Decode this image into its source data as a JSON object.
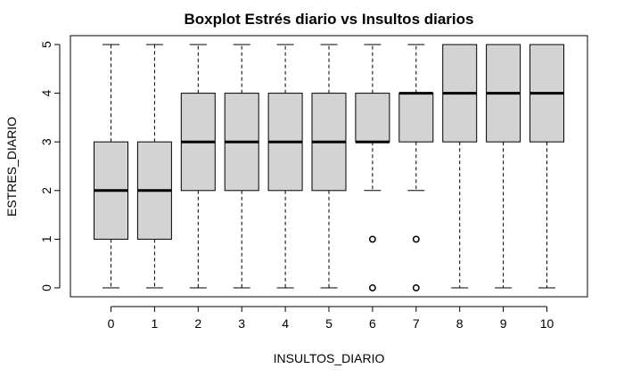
{
  "chart_data": {
    "type": "boxplot",
    "title": "Boxplot Estrés diario vs Insultos diarios",
    "xlabel": "INSULTOS_DIARIO",
    "ylabel": "ESTRES_DIARIO",
    "ylim": [
      0,
      5
    ],
    "y_ticks": [
      "0",
      "1",
      "2",
      "3",
      "4",
      "5"
    ],
    "categories": [
      "0",
      "1",
      "2",
      "3",
      "4",
      "5",
      "6",
      "7",
      "8",
      "9",
      "10"
    ],
    "box_color": "#d3d3d3",
    "boxes": [
      {
        "x": "0",
        "whisker_low": 0,
        "q1": 1,
        "median": 2,
        "q3": 3,
        "whisker_high": 5,
        "outliers": []
      },
      {
        "x": "1",
        "whisker_low": 0,
        "q1": 1,
        "median": 2,
        "q3": 3,
        "whisker_high": 5,
        "outliers": []
      },
      {
        "x": "2",
        "whisker_low": 0,
        "q1": 2,
        "median": 3,
        "q3": 4,
        "whisker_high": 5,
        "outliers": []
      },
      {
        "x": "3",
        "whisker_low": 0,
        "q1": 2,
        "median": 3,
        "q3": 4,
        "whisker_high": 5,
        "outliers": []
      },
      {
        "x": "4",
        "whisker_low": 0,
        "q1": 2,
        "median": 3,
        "q3": 4,
        "whisker_high": 5,
        "outliers": []
      },
      {
        "x": "5",
        "whisker_low": 0,
        "q1": 2,
        "median": 3,
        "q3": 4,
        "whisker_high": 5,
        "outliers": []
      },
      {
        "x": "6",
        "whisker_low": 2,
        "q1": 3,
        "median": 3,
        "q3": 4,
        "whisker_high": 5,
        "outliers": [
          0,
          1
        ]
      },
      {
        "x": "7",
        "whisker_low": 2,
        "q1": 3,
        "median": 4,
        "q3": 4,
        "whisker_high": 5,
        "outliers": [
          0,
          1
        ]
      },
      {
        "x": "8",
        "whisker_low": 0,
        "q1": 3,
        "median": 4,
        "q3": 5,
        "whisker_high": 5,
        "outliers": []
      },
      {
        "x": "9",
        "whisker_low": 0,
        "q1": 3,
        "median": 4,
        "q3": 5,
        "whisker_high": 5,
        "outliers": []
      },
      {
        "x": "10",
        "whisker_low": 0,
        "q1": 3,
        "median": 4,
        "q3": 5,
        "whisker_high": 5,
        "outliers": []
      }
    ]
  }
}
